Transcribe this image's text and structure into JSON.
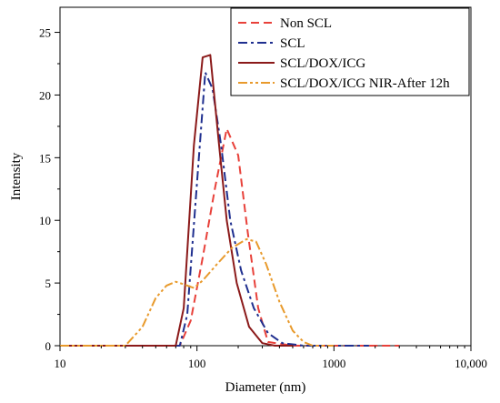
{
  "chart_data": {
    "type": "line",
    "xlabel": "Diameter (nm)",
    "ylabel": "Intensity",
    "xscale": "log",
    "xlim": [
      10,
      10000
    ],
    "ylim": [
      0,
      27
    ],
    "x_ticks": [
      10,
      100,
      1000,
      10000
    ],
    "x_tick_labels": [
      "10",
      "100",
      "1000",
      "10,000"
    ],
    "y_ticks": [
      0,
      5,
      10,
      15,
      20,
      25
    ],
    "y_tick_labels": [
      "0",
      "5",
      "10",
      "15",
      "20",
      "25"
    ],
    "grid": false,
    "legend_position": "top-right",
    "series": [
      {
        "name": "Non SCL",
        "color": "#e8413a",
        "dash": "dashed",
        "x": [
          10,
          75,
          90,
          110,
          135,
          165,
          200,
          235,
          280,
          330,
          500,
          1000,
          3000
        ],
        "y": [
          0,
          0,
          2,
          7,
          12.5,
          17.3,
          15.2,
          9,
          3,
          0.3,
          0,
          0,
          0
        ]
      },
      {
        "name": "SCL",
        "color": "#1f2f8f",
        "dash": "dashdot",
        "x": [
          10,
          75,
          85,
          100,
          115,
          130,
          150,
          175,
          210,
          260,
          330,
          420,
          600,
          1800
        ],
        "y": [
          0,
          0,
          2.5,
          13,
          21.8,
          20.5,
          16,
          10,
          6,
          3,
          1,
          0.2,
          0,
          0
        ]
      },
      {
        "name": "SCL/DOX/ICG",
        "color": "#8b1a1a",
        "dash": "solid",
        "x": [
          10,
          70,
          80,
          95,
          110,
          125,
          145,
          165,
          195,
          240,
          300,
          370,
          500
        ],
        "y": [
          0,
          0,
          3,
          16,
          23,
          23.2,
          16,
          10,
          5,
          1.5,
          0.2,
          0,
          0
        ]
      },
      {
        "name": "SCL/DOX/ICG NIR-After 12h",
        "color": "#e89a2c",
        "dash": "dashdotdot",
        "x": [
          10,
          30,
          40,
          50,
          60,
          70,
          80,
          95,
          110,
          140,
          180,
          230,
          270,
          320,
          400,
          500,
          600,
          700,
          1000
        ],
        "y": [
          0,
          0,
          1.5,
          3.8,
          4.8,
          5.1,
          4.9,
          4.6,
          5.2,
          6.5,
          7.8,
          8.5,
          8.3,
          6.5,
          3.5,
          1.2,
          0.3,
          0,
          0
        ]
      }
    ]
  }
}
